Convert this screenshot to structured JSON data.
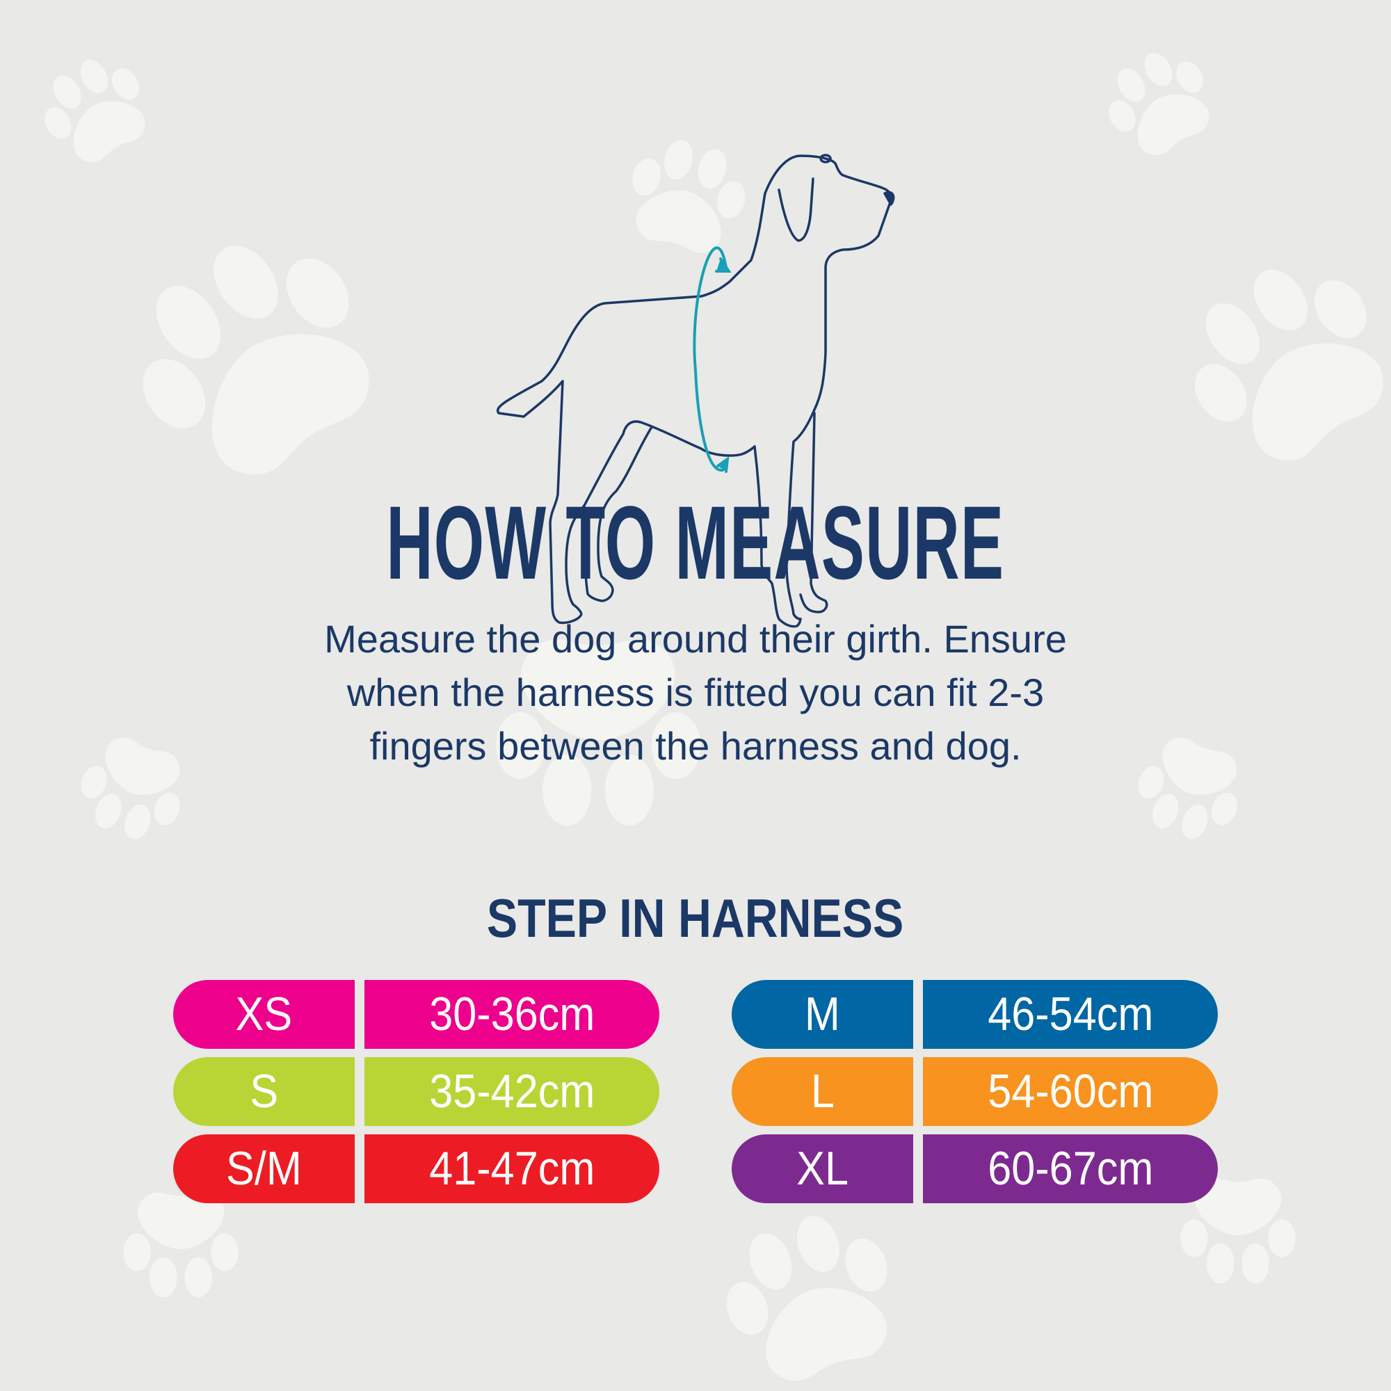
{
  "title": "HOW TO MEASURE",
  "description": [
    "Measure the dog around their girth. Ensure",
    "when the harness is fitted you can fit 2-3",
    "fingers between the harness and dog."
  ],
  "subtitle": "STEP IN HARNESS",
  "colors": {
    "navy": "#1b3866",
    "teal": "#1a9fb6",
    "background": "#e9e9e7",
    "paw": "#f4f4f1"
  },
  "icons": {
    "dog": "dog-outline-illustration",
    "girth": "girth-measure-arrow",
    "paws": "paw-print"
  },
  "sizes": [
    {
      "size": "XS",
      "range": "30-36cm",
      "color": "#ec008c"
    },
    {
      "size": "S",
      "range": "35-42cm",
      "color": "#b8d535"
    },
    {
      "size": "S/M",
      "range": "41-47cm",
      "color": "#ed1c24"
    },
    {
      "size": "M",
      "range": "46-54cm",
      "color": "#0066a4"
    },
    {
      "size": "L",
      "range": "54-60cm",
      "color": "#f7931e"
    },
    {
      "size": "XL",
      "range": "60-67cm",
      "color": "#7d2a90"
    }
  ]
}
